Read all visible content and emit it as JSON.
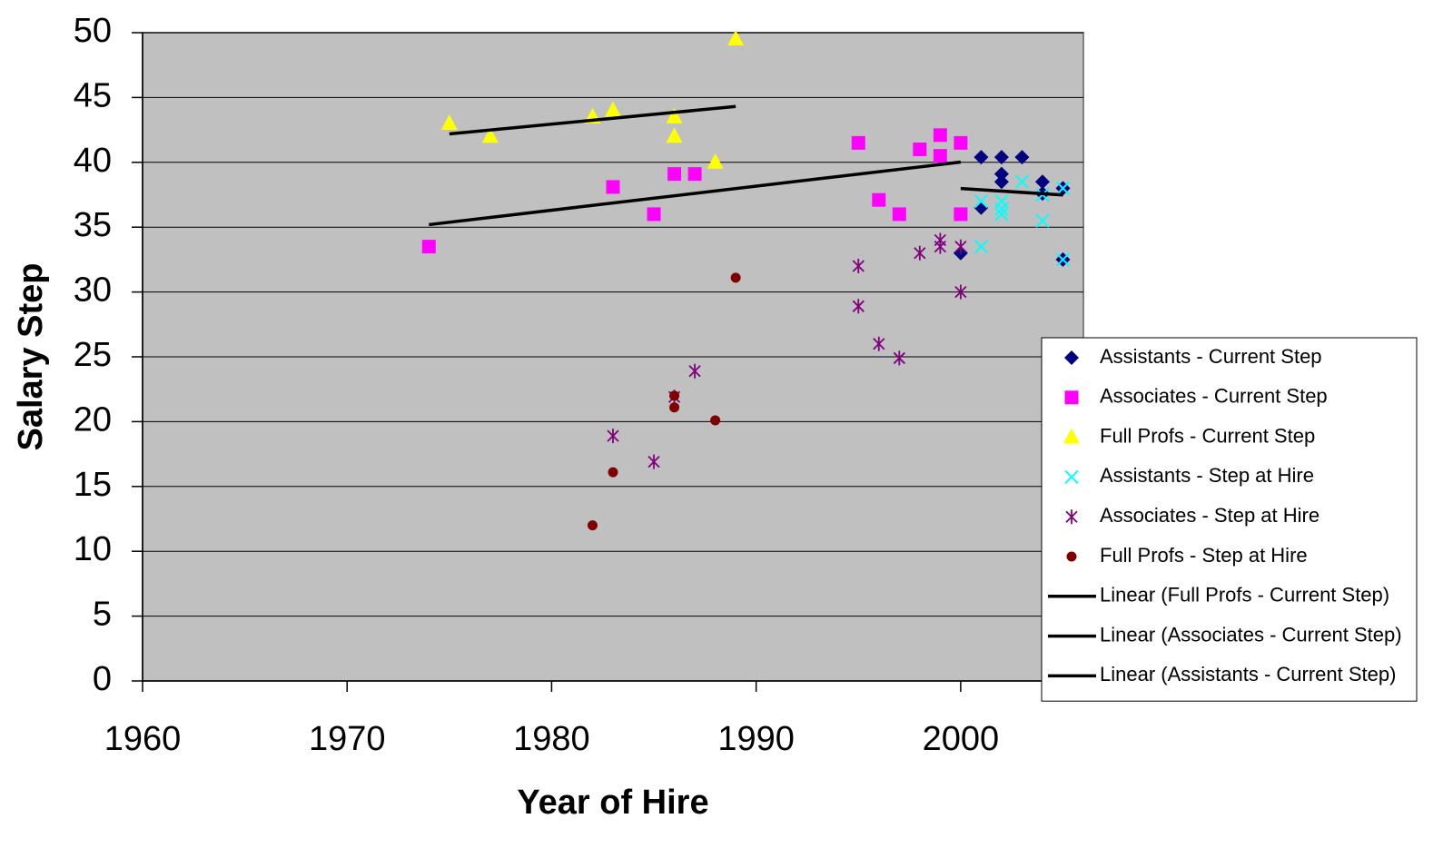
{
  "chart_data": {
    "type": "scatter",
    "x_label": "Year of Hire",
    "y_label": "Salary Step",
    "xlim": [
      1960,
      2006
    ],
    "ylim": [
      0,
      50
    ],
    "xticks": [
      1960,
      1970,
      1980,
      1990,
      2000
    ],
    "yticks": [
      0,
      5,
      10,
      15,
      20,
      25,
      30,
      35,
      40,
      45,
      50
    ],
    "grid": true,
    "legend": "right",
    "series": [
      {
        "name": "Assistants - Current Step",
        "color": "#000080",
        "marker": "diamond",
        "x": [
          2001,
          2001,
          2002,
          2002,
          2002,
          2003,
          2004,
          2004,
          2005,
          2005,
          2000
        ],
        "values": [
          40.4,
          36.5,
          40.4,
          39.1,
          38.5,
          40.4,
          38.5,
          37.6,
          38.0,
          32.5,
          33.0
        ]
      },
      {
        "name": "Associates - Current Step",
        "color": "#ff00ff",
        "marker": "square",
        "x": [
          1974,
          1983,
          1985,
          1986,
          1987,
          1995,
          1996,
          1997,
          1998,
          1999,
          1999,
          2000,
          2000
        ],
        "values": [
          33.5,
          38.1,
          36,
          39.1,
          39.1,
          41.5,
          37.1,
          36,
          41.0,
          42.1,
          40.5,
          41.5,
          36
        ]
      },
      {
        "name": "Full Profs - Current Step",
        "color": "#ffff00",
        "marker": "triangle",
        "x": [
          1975,
          1977,
          1982,
          1983,
          1986,
          1986,
          1988,
          1989
        ],
        "values": [
          43,
          42,
          43.5,
          44,
          43.5,
          42,
          40,
          49.5
        ]
      },
      {
        "name": "Assistants - Step at Hire",
        "color": "#00ffff",
        "marker": "x",
        "x": [
          2001,
          2001,
          2002,
          2002,
          2002,
          2003,
          2004,
          2004,
          2005,
          2005
        ],
        "values": [
          37,
          33.5,
          37,
          36,
          36.4,
          38.5,
          35.5,
          37.5,
          38,
          32.5
        ]
      },
      {
        "name": "Associates - Step at Hire",
        "color": "#800080",
        "marker": "star",
        "x": [
          1983,
          1985,
          1986,
          1987,
          1995,
          1995,
          1996,
          1997,
          1998,
          1999,
          1999,
          2000,
          2000
        ],
        "values": [
          18.9,
          16.9,
          21.9,
          23.9,
          32,
          28.9,
          26,
          24.9,
          33,
          34,
          33.5,
          33.5,
          30
        ]
      },
      {
        "name": "Full Profs - Step at Hire",
        "color": "#800000",
        "marker": "circle",
        "x": [
          1982,
          1983,
          1986,
          1986,
          1988,
          1989
        ],
        "values": [
          12,
          16.1,
          22,
          21.1,
          20.1,
          31.1
        ]
      }
    ],
    "trendlines": [
      {
        "name": "Linear (Full Profs - Current Step)",
        "color": "#000000",
        "series": 2
      },
      {
        "name": "Linear (Associates - Current Step)",
        "color": "#000000",
        "series": 1
      },
      {
        "name": "Linear (Assistants - Current Step)",
        "color": "#000000",
        "series": 0
      }
    ]
  }
}
